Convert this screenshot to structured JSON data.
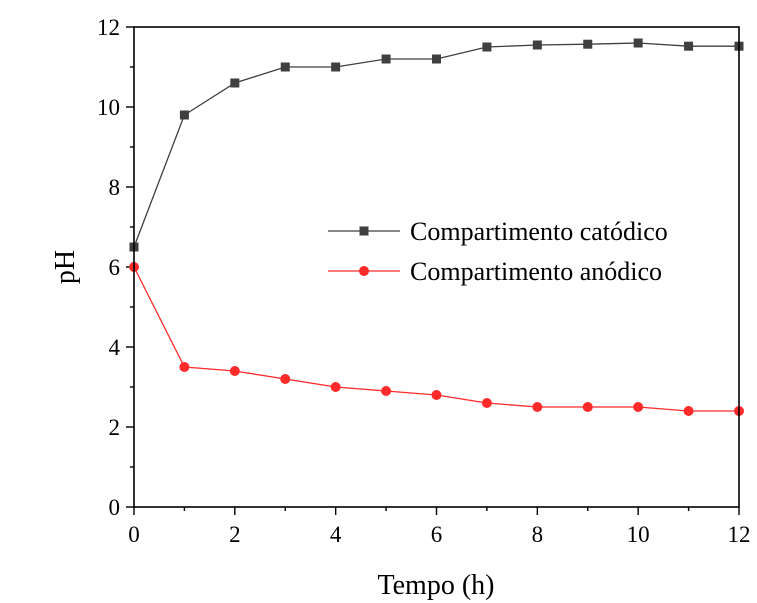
{
  "chart_data": {
    "type": "line",
    "title": "",
    "xlabel": "Tempo (h)",
    "ylabel": "pH",
    "xlim": [
      0,
      12
    ],
    "ylim": [
      0,
      12
    ],
    "xticks": [
      0,
      2,
      4,
      6,
      8,
      10,
      12
    ],
    "yticks": [
      0,
      2,
      4,
      6,
      8,
      10,
      12
    ],
    "grid": false,
    "legend_position": "center-right",
    "series": [
      {
        "name": "Compartimento catódico",
        "color": "#3f3f3f",
        "marker": "square",
        "x": [
          0,
          1,
          2,
          3,
          4,
          5,
          6,
          7,
          8,
          9,
          10,
          11,
          12
        ],
        "y": [
          6.5,
          9.8,
          10.6,
          11.0,
          11.0,
          11.2,
          11.2,
          11.5,
          11.55,
          11.57,
          11.6,
          11.52,
          11.52
        ]
      },
      {
        "name": "Compartimento anódico",
        "color": "#ff2a2a",
        "marker": "circle",
        "x": [
          0,
          1,
          2,
          3,
          4,
          5,
          6,
          7,
          8,
          9,
          10,
          11,
          12
        ],
        "y": [
          6.0,
          3.5,
          3.4,
          3.2,
          3.0,
          2.9,
          2.8,
          2.6,
          2.5,
          2.5,
          2.5,
          2.4,
          2.4
        ]
      }
    ]
  }
}
